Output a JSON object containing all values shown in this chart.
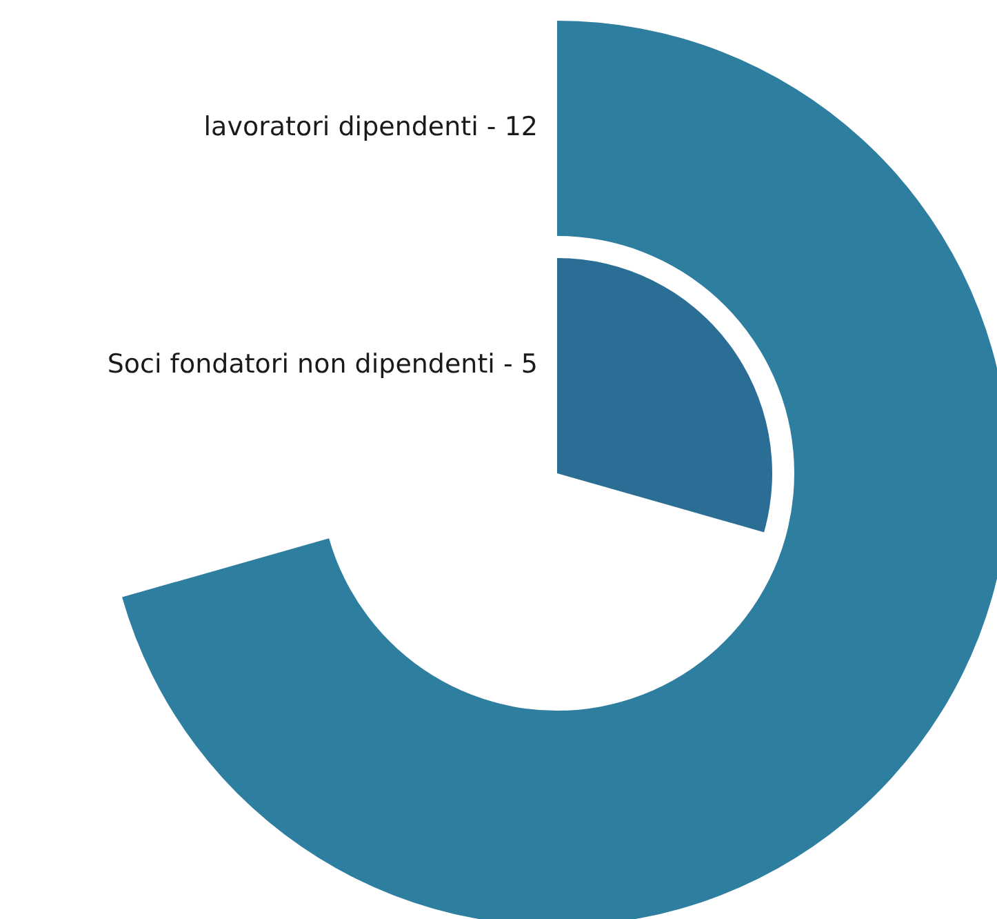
{
  "chart_data": {
    "type": "other",
    "categories": [
      "lavoratori dipendenti -",
      "Soci fondatori non dipendenti -"
    ],
    "values": [
      12,
      5
    ],
    "data_labels": true,
    "colors": [
      "#2e7ea0",
      "#2a6d95"
    ]
  }
}
